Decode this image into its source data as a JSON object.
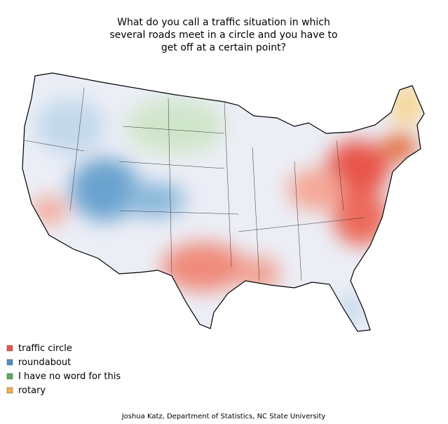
{
  "title": [
    "What do you call a traffic situation in which",
    "several roads meet in a circle and you have to",
    "get off at a certain point?"
  ],
  "legend": [
    {
      "label": "traffic circle",
      "color": "#e8554a"
    },
    {
      "label": "roundabout",
      "color": "#4f8fc4"
    },
    {
      "label": "I have no word for this",
      "color": "#5aaa5a"
    },
    {
      "label": "rotary",
      "color": "#f2b24a"
    }
  ],
  "credit": "Joshua Katz, Department of Statistics, NC State University"
}
